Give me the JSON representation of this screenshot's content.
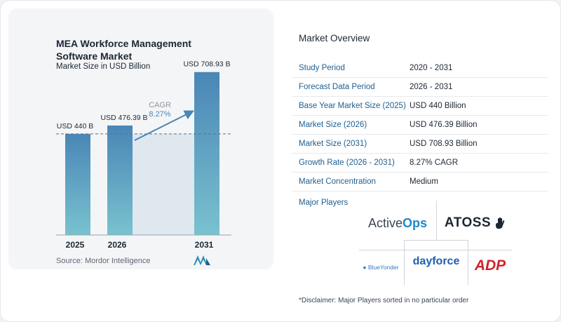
{
  "chart_data": {
    "type": "bar",
    "title": "MEA Workforce Management Software Market",
    "subtitle": "Market Size in USD Billion",
    "categories": [
      "2025",
      "2026",
      "2031"
    ],
    "values": [
      440,
      476.39,
      708.93
    ],
    "data_labels": [
      "USD 440 B",
      "USD 476.39 B",
      "USD 708.93 B"
    ],
    "annotation": {
      "label": "CAGR",
      "value": "8.27%"
    },
    "xlabel": "",
    "ylabel": "",
    "ylim": [
      0,
      760
    ],
    "reference_line_value": 440,
    "colors": {
      "bar_top": "#4a86b6",
      "bar_bottom": "#79c2cf",
      "arrow": "#4a86b6",
      "band": "#dfe8ef"
    }
  },
  "source": "Source:  Mordor Intelligence",
  "overview": {
    "title": "Market Overview",
    "rows": [
      {
        "key": "Study Period",
        "value": "2020 - 2031"
      },
      {
        "key": "Forecast Data Period",
        "value": "2026 - 2031"
      },
      {
        "key": "Base Year Market Size (2025)",
        "value": "USD 440 Billion"
      },
      {
        "key": "Market Size (2026)",
        "value": "USD 476.39 Billion"
      },
      {
        "key": "Market Size (2031)",
        "value": "USD 708.93 Billion"
      },
      {
        "key": "Growth Rate (2026 - 2031)",
        "value": "8.27% CAGR"
      },
      {
        "key": "Market Concentration",
        "value": "Medium"
      }
    ]
  },
  "players": {
    "title": "Major Players",
    "activeops_a": "Active",
    "activeops_b": "Ops",
    "atoss": "ATOSS",
    "blueyonder": "BlueYonder",
    "dayforce": "dayforce",
    "adp": "ADP"
  },
  "disclaimer": "*Disclaimer: Major Players sorted in no particular order"
}
